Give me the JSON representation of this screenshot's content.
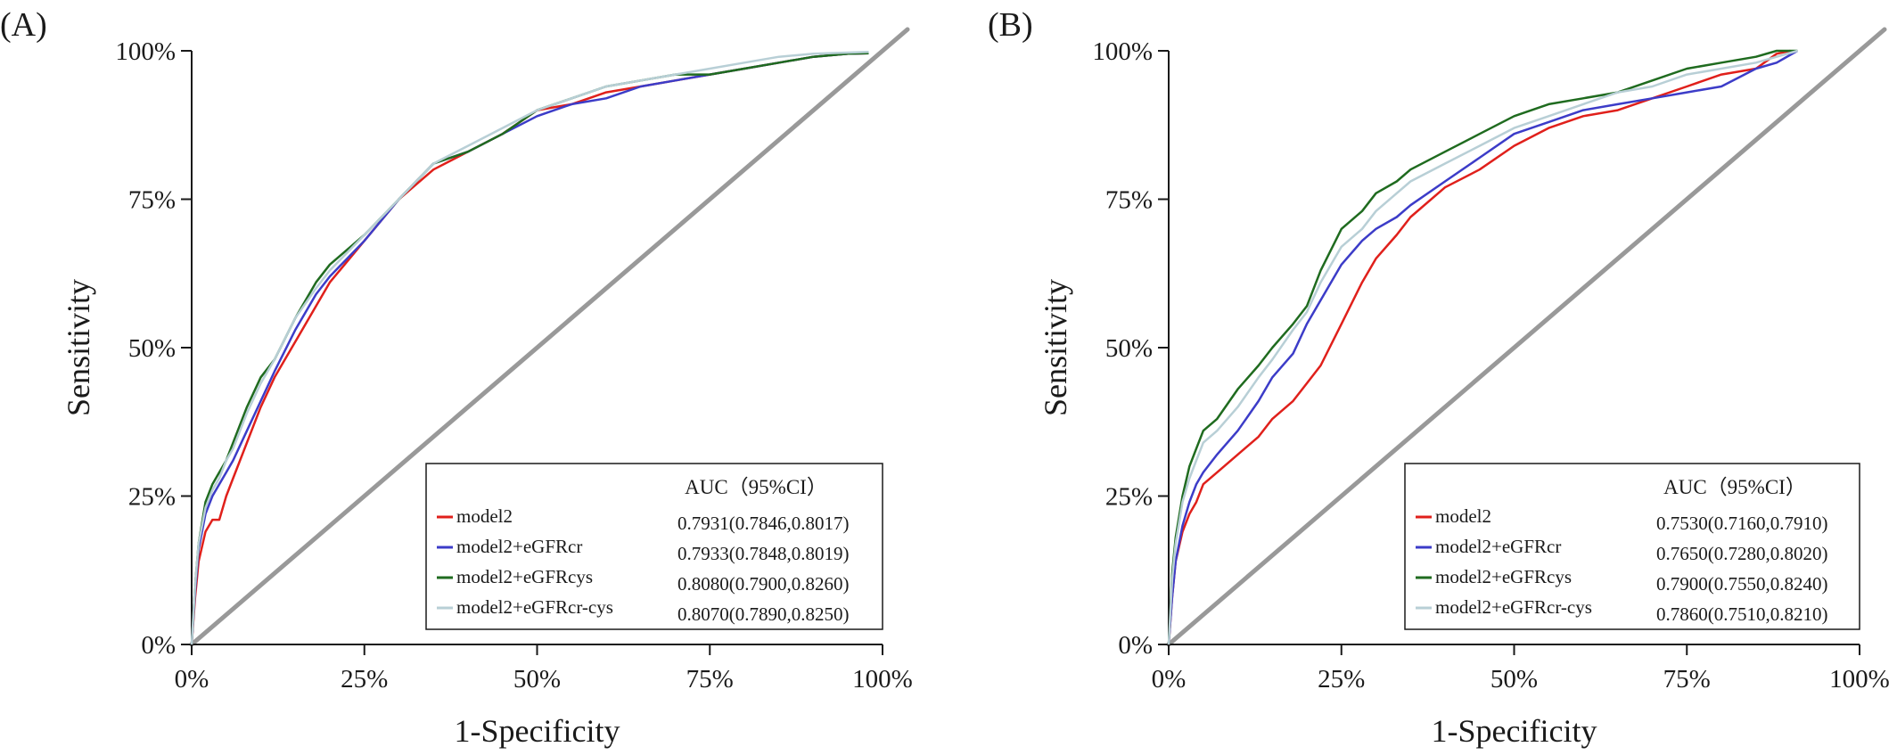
{
  "chart_data": [
    {
      "panel_label": "(A)",
      "type": "line",
      "xlabel": "1-Specificity",
      "ylabel": "Sensitivity",
      "xlim": [
        0,
        100
      ],
      "ylim": [
        0,
        100
      ],
      "x_ticks": [
        "0%",
        "25%",
        "50%",
        "75%",
        "100%"
      ],
      "y_ticks": [
        "0%",
        "25%",
        "50%",
        "75%",
        "100%"
      ],
      "grid": false,
      "legend_position": "bottom-right",
      "legend_header": "AUC（95%CI）",
      "reference_line": {
        "x": [
          0,
          100
        ],
        "y": [
          0,
          100
        ],
        "color": "#999999"
      },
      "series": [
        {
          "name": "model2",
          "auc": "0.7931(0.7846,0.8017)",
          "color": "#e0201b",
          "x": [
            0,
            0.5,
            1,
            2,
            3,
            4,
            5,
            6,
            8,
            10,
            12,
            15,
            18,
            20,
            25,
            30,
            35,
            40,
            45,
            50,
            55,
            60,
            65,
            70,
            75,
            80,
            85,
            90,
            95,
            98
          ],
          "y": [
            0,
            8,
            14,
            19,
            21,
            21,
            25,
            28,
            34,
            40,
            45,
            51,
            57,
            61,
            68,
            75,
            80,
            83,
            86,
            90,
            91,
            93,
            94,
            95,
            96,
            97,
            98,
            99,
            99.5,
            99.6
          ]
        },
        {
          "name": "model2+eGFRcr",
          "auc": "0.7933(0.7848,0.8019)",
          "color": "#3c3cc8",
          "x": [
            0,
            0.5,
            1,
            2,
            3,
            4,
            5,
            6,
            8,
            10,
            12,
            15,
            18,
            20,
            25,
            30,
            35,
            40,
            45,
            50,
            55,
            60,
            65,
            70,
            75,
            80,
            85,
            90,
            95,
            98
          ],
          "y": [
            0,
            9,
            16,
            22,
            25,
            27,
            29,
            31,
            36,
            41,
            46,
            53,
            59,
            62,
            68,
            75,
            81,
            83,
            86,
            89,
            91,
            92,
            94,
            95,
            96,
            97,
            98,
            99,
            99.5,
            99.6
          ]
        },
        {
          "name": "model2+eGFRcys",
          "auc": "0.8080(0.7900,0.8260)",
          "color": "#1f6b1f",
          "x": [
            0,
            0.5,
            1,
            2,
            3,
            4,
            5,
            6,
            8,
            10,
            12,
            15,
            18,
            20,
            25,
            30,
            35,
            40,
            45,
            50,
            55,
            60,
            65,
            70,
            75,
            80,
            85,
            90,
            95,
            98
          ],
          "y": [
            0,
            10,
            17,
            24,
            27,
            29,
            31,
            34,
            40,
            45,
            48,
            55,
            61,
            64,
            69,
            75,
            81,
            83,
            86,
            90,
            92,
            94,
            95,
            96,
            96,
            97,
            98,
            99,
            99.5,
            99.6
          ]
        },
        {
          "name": "model2+eGFRcr-cys",
          "auc": "0.8070(0.7890,0.8250)",
          "color": "#b8cfd6",
          "x": [
            0,
            0.5,
            1,
            2,
            3,
            4,
            5,
            6,
            8,
            10,
            12,
            15,
            18,
            20,
            25,
            30,
            35,
            40,
            45,
            50,
            55,
            60,
            65,
            70,
            75,
            80,
            85,
            90,
            95,
            98
          ],
          "y": [
            0,
            10,
            17,
            23,
            26,
            28,
            31,
            33,
            39,
            44,
            48,
            55,
            60,
            63,
            69,
            75,
            81,
            84,
            87,
            90,
            92,
            94,
            95,
            96,
            97,
            98,
            99,
            99.5,
            99.7,
            99.8
          ]
        }
      ]
    },
    {
      "panel_label": "(B)",
      "type": "line",
      "xlabel": "1-Specificity",
      "ylabel": "Sensitivity",
      "xlim": [
        0,
        100
      ],
      "ylim": [
        0,
        100
      ],
      "x_ticks": [
        "0%",
        "25%",
        "50%",
        "75%",
        "100%"
      ],
      "y_ticks": [
        "0%",
        "25%",
        "50%",
        "75%",
        "100%"
      ],
      "grid": false,
      "legend_position": "bottom-right",
      "legend_header": "AUC（95%CI）",
      "reference_line": {
        "x": [
          0,
          100
        ],
        "y": [
          0,
          100
        ],
        "color": "#999999"
      },
      "series": [
        {
          "name": "model2",
          "auc": "0.7530(0.7160,0.7910)",
          "color": "#e0201b",
          "x": [
            0,
            0.5,
            1,
            2,
            3,
            4,
            5,
            7,
            10,
            13,
            15,
            18,
            20,
            22,
            25,
            28,
            30,
            33,
            35,
            40,
            45,
            50,
            55,
            60,
            65,
            70,
            75,
            80,
            85,
            88,
            90
          ],
          "y": [
            0,
            8,
            14,
            19,
            22,
            24,
            27,
            29,
            32,
            35,
            38,
            41,
            44,
            47,
            54,
            61,
            65,
            69,
            72,
            77,
            80,
            84,
            87,
            89,
            90,
            92,
            94,
            96,
            97,
            99.5,
            100
          ]
        },
        {
          "name": "model2+eGFRcr",
          "auc": "0.7650(0.7280,0.8020)",
          "color": "#3c3cc8",
          "x": [
            0,
            0.5,
            1,
            2,
            3,
            4,
            5,
            7,
            10,
            13,
            15,
            18,
            20,
            22,
            25,
            28,
            30,
            33,
            35,
            40,
            45,
            50,
            55,
            60,
            65,
            70,
            75,
            80,
            85,
            88,
            91
          ],
          "y": [
            0,
            8,
            14,
            20,
            24,
            27,
            29,
            32,
            36,
            41,
            45,
            49,
            54,
            58,
            64,
            68,
            70,
            72,
            74,
            78,
            82,
            86,
            88,
            90,
            91,
            92,
            93,
            94,
            97,
            98,
            100
          ]
        },
        {
          "name": "model2+eGFRcys",
          "auc": "0.7900(0.7550,0.8240)",
          "color": "#1f6b1f",
          "x": [
            0,
            0.5,
            1,
            2,
            3,
            4,
            5,
            7,
            10,
            13,
            15,
            18,
            20,
            22,
            25,
            28,
            30,
            33,
            35,
            40,
            45,
            50,
            55,
            60,
            65,
            70,
            75,
            80,
            85,
            88,
            91
          ],
          "y": [
            0,
            12,
            18,
            25,
            30,
            33,
            36,
            38,
            43,
            47,
            50,
            54,
            57,
            63,
            70,
            73,
            76,
            78,
            80,
            83,
            86,
            89,
            91,
            92,
            93,
            95,
            97,
            98,
            99,
            100,
            100
          ]
        },
        {
          "name": "model2+eGFRcr-cys",
          "auc": "0.7860(0.7510,0.8210)",
          "color": "#b8cfd6",
          "x": [
            0,
            0.5,
            1,
            2,
            3,
            4,
            5,
            7,
            10,
            13,
            15,
            18,
            20,
            22,
            25,
            28,
            30,
            33,
            35,
            40,
            45,
            50,
            55,
            60,
            65,
            70,
            75,
            80,
            85,
            88,
            91
          ],
          "y": [
            0,
            11,
            17,
            24,
            28,
            31,
            34,
            36,
            40,
            45,
            48,
            53,
            56,
            61,
            67,
            70,
            73,
            76,
            78,
            81,
            84,
            87,
            89,
            91,
            93,
            94,
            96,
            97,
            98,
            99,
            100
          ]
        }
      ]
    }
  ]
}
